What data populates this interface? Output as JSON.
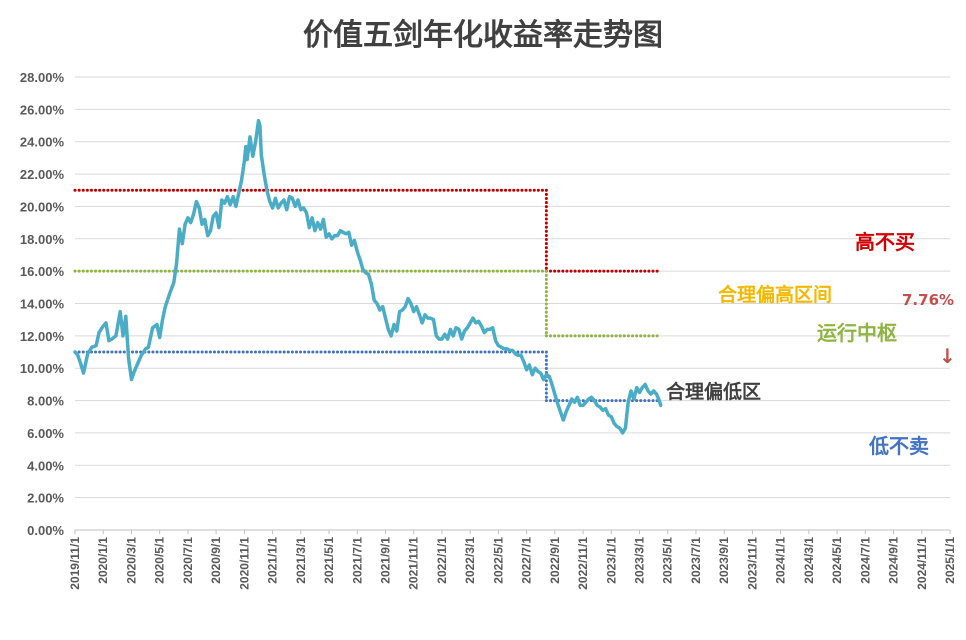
{
  "chart_data": {
    "type": "line",
    "title": "价值五剑年化收益率走势图",
    "xlabel": "",
    "ylabel": "",
    "ylim": [
      0,
      28
    ],
    "y_ticks": [
      "0.00%",
      "2.00%",
      "4.00%",
      "6.00%",
      "8.00%",
      "10.00%",
      "12.00%",
      "14.00%",
      "16.00%",
      "18.00%",
      "20.00%",
      "22.00%",
      "24.00%",
      "26.00%",
      "28.00%"
    ],
    "x_ticks": [
      "2019/11/1",
      "2020/1/1",
      "2020/3/1",
      "2020/5/1",
      "2020/7/1",
      "2020/9/1",
      "2020/11/1",
      "2021/1/1",
      "2021/3/1",
      "2021/5/1",
      "2021/7/1",
      "2021/9/1",
      "2021/11/1",
      "2022/1/1",
      "2022/3/1",
      "2022/5/1",
      "2022/7/1",
      "2022/9/1",
      "2022/11/1",
      "2023/1/1",
      "2023/3/1",
      "2023/5/1",
      "2023/7/1",
      "2023/9/1",
      "2023/11/1",
      "2024/1/1",
      "2024/3/1",
      "2024/5/1",
      "2024/7/1",
      "2024/9/1",
      "2024/11/1",
      "2025/1/1"
    ],
    "grid": true,
    "series": [
      {
        "color": "#4BACC6",
        "points": [
          [
            0.0,
            11.0
          ],
          [
            0.1,
            10.8
          ],
          [
            0.2,
            10.3
          ],
          [
            0.3,
            9.7
          ],
          [
            0.45,
            10.9
          ],
          [
            0.6,
            11.3
          ],
          [
            0.75,
            11.4
          ],
          [
            0.85,
            12.2
          ],
          [
            1.0,
            12.6
          ],
          [
            1.1,
            12.8
          ],
          [
            1.2,
            11.7
          ],
          [
            1.3,
            11.8
          ],
          [
            1.45,
            12.0
          ],
          [
            1.6,
            13.5
          ],
          [
            1.7,
            12.0
          ],
          [
            1.8,
            13.2
          ],
          [
            1.9,
            10.6
          ],
          [
            2.0,
            9.3
          ],
          [
            2.1,
            9.8
          ],
          [
            2.2,
            10.2
          ],
          [
            2.35,
            10.8
          ],
          [
            2.5,
            11.2
          ],
          [
            2.6,
            11.3
          ],
          [
            2.75,
            12.5
          ],
          [
            2.9,
            12.7
          ],
          [
            3.0,
            11.9
          ],
          [
            3.1,
            13.0
          ],
          [
            3.2,
            13.8
          ],
          [
            3.35,
            14.6
          ],
          [
            3.5,
            15.3
          ],
          [
            3.6,
            16.5
          ],
          [
            3.7,
            18.6
          ],
          [
            3.8,
            17.7
          ],
          [
            3.9,
            18.9
          ],
          [
            4.0,
            19.3
          ],
          [
            4.1,
            19.0
          ],
          [
            4.2,
            19.5
          ],
          [
            4.3,
            20.3
          ],
          [
            4.4,
            19.9
          ],
          [
            4.5,
            18.9
          ],
          [
            4.6,
            19.2
          ],
          [
            4.7,
            18.2
          ],
          [
            4.8,
            18.5
          ],
          [
            4.9,
            19.4
          ],
          [
            5.0,
            19.6
          ],
          [
            5.1,
            18.7
          ],
          [
            5.2,
            20.4
          ],
          [
            5.3,
            20.2
          ],
          [
            5.4,
            20.6
          ],
          [
            5.5,
            20.1
          ],
          [
            5.6,
            20.6
          ],
          [
            5.7,
            20.0
          ],
          [
            5.8,
            20.8
          ],
          [
            5.9,
            21.6
          ],
          [
            6.0,
            22.8
          ],
          [
            6.05,
            23.7
          ],
          [
            6.1,
            22.9
          ],
          [
            6.2,
            24.3
          ],
          [
            6.3,
            23.1
          ],
          [
            6.4,
            24.0
          ],
          [
            6.5,
            25.3
          ],
          [
            6.55,
            25.0
          ],
          [
            6.6,
            23.2
          ],
          [
            6.7,
            22.0
          ],
          [
            6.8,
            21.0
          ],
          [
            6.9,
            20.3
          ],
          [
            7.0,
            19.9
          ],
          [
            7.1,
            20.5
          ],
          [
            7.2,
            19.9
          ],
          [
            7.3,
            20.2
          ],
          [
            7.4,
            20.4
          ],
          [
            7.5,
            19.8
          ],
          [
            7.6,
            20.6
          ],
          [
            7.7,
            20.5
          ],
          [
            7.8,
            20.0
          ],
          [
            7.9,
            20.4
          ],
          [
            8.0,
            19.8
          ],
          [
            8.1,
            19.9
          ],
          [
            8.2,
            19.6
          ],
          [
            8.3,
            18.7
          ],
          [
            8.4,
            19.3
          ],
          [
            8.5,
            18.5
          ],
          [
            8.6,
            19.0
          ],
          [
            8.7,
            18.6
          ],
          [
            8.8,
            19.2
          ],
          [
            8.9,
            18.1
          ],
          [
            9.0,
            18.3
          ],
          [
            9.1,
            18.0
          ],
          [
            9.2,
            18.2
          ],
          [
            9.3,
            18.2
          ],
          [
            9.4,
            18.5
          ],
          [
            9.5,
            18.4
          ],
          [
            9.6,
            18.3
          ],
          [
            9.7,
            18.4
          ],
          [
            9.8,
            17.6
          ],
          [
            9.9,
            17.9
          ],
          [
            10.0,
            17.2
          ],
          [
            10.1,
            16.7
          ],
          [
            10.2,
            16.1
          ],
          [
            10.3,
            15.9
          ],
          [
            10.4,
            15.8
          ],
          [
            10.5,
            15.2
          ],
          [
            10.6,
            14.2
          ],
          [
            10.7,
            14.0
          ],
          [
            10.8,
            13.6
          ],
          [
            10.9,
            13.8
          ],
          [
            11.0,
            13.1
          ],
          [
            11.1,
            12.4
          ],
          [
            11.2,
            12.0
          ],
          [
            11.3,
            12.7
          ],
          [
            11.4,
            12.3
          ],
          [
            11.5,
            13.5
          ],
          [
            11.6,
            13.6
          ],
          [
            11.7,
            13.8
          ],
          [
            11.8,
            14.3
          ],
          [
            11.9,
            14.0
          ],
          [
            12.0,
            13.5
          ],
          [
            12.1,
            13.8
          ],
          [
            12.2,
            13.3
          ],
          [
            12.3,
            12.8
          ],
          [
            12.4,
            13.3
          ],
          [
            12.5,
            13.1
          ],
          [
            12.6,
            13.1
          ],
          [
            12.7,
            13.0
          ],
          [
            12.8,
            12.0
          ],
          [
            12.9,
            11.8
          ],
          [
            13.0,
            11.8
          ],
          [
            13.1,
            12.1
          ],
          [
            13.2,
            11.8
          ],
          [
            13.3,
            12.4
          ],
          [
            13.4,
            12.0
          ],
          [
            13.5,
            12.5
          ],
          [
            13.6,
            12.4
          ],
          [
            13.7,
            11.8
          ],
          [
            13.8,
            12.3
          ],
          [
            13.9,
            12.5
          ],
          [
            14.0,
            12.8
          ],
          [
            14.1,
            13.1
          ],
          [
            14.2,
            12.8
          ],
          [
            14.3,
            12.9
          ],
          [
            14.4,
            12.6
          ],
          [
            14.5,
            12.2
          ],
          [
            14.6,
            12.4
          ],
          [
            14.7,
            12.4
          ],
          [
            14.8,
            12.5
          ],
          [
            14.9,
            11.7
          ],
          [
            15.0,
            11.4
          ],
          [
            15.1,
            11.3
          ],
          [
            15.2,
            11.2
          ],
          [
            15.3,
            11.2
          ],
          [
            15.4,
            11.1
          ],
          [
            15.5,
            11.1
          ],
          [
            15.6,
            10.9
          ],
          [
            15.7,
            10.8
          ],
          [
            15.8,
            10.8
          ],
          [
            15.9,
            10.4
          ],
          [
            16.0,
            9.9
          ],
          [
            16.1,
            10.2
          ],
          [
            16.2,
            9.6
          ],
          [
            16.3,
            10.0
          ],
          [
            16.4,
            9.8
          ],
          [
            16.5,
            9.7
          ],
          [
            16.6,
            9.3
          ],
          [
            16.7,
            9.6
          ],
          [
            16.8,
            9.5
          ],
          [
            16.9,
            9.0
          ],
          [
            17.0,
            8.4
          ],
          [
            17.1,
            7.8
          ],
          [
            17.2,
            7.3
          ],
          [
            17.3,
            6.8
          ],
          [
            17.4,
            7.3
          ],
          [
            17.5,
            7.7
          ],
          [
            17.6,
            8.1
          ],
          [
            17.7,
            7.9
          ],
          [
            17.8,
            8.2
          ],
          [
            17.9,
            7.7
          ],
          [
            18.0,
            7.7
          ],
          [
            18.1,
            7.9
          ],
          [
            18.2,
            8.1
          ],
          [
            18.3,
            8.2
          ],
          [
            18.4,
            8.0
          ],
          [
            18.5,
            7.7
          ],
          [
            18.6,
            7.6
          ],
          [
            18.7,
            7.4
          ],
          [
            18.8,
            7.5
          ],
          [
            18.9,
            7.1
          ],
          [
            19.0,
            7.0
          ],
          [
            19.1,
            6.6
          ],
          [
            19.2,
            6.4
          ],
          [
            19.3,
            6.3
          ],
          [
            19.4,
            6.0
          ],
          [
            19.5,
            6.3
          ],
          [
            19.6,
            7.9
          ],
          [
            19.7,
            8.6
          ],
          [
            19.8,
            8.1
          ],
          [
            19.9,
            8.8
          ],
          [
            20.0,
            8.5
          ],
          [
            20.1,
            8.8
          ],
          [
            20.2,
            9.0
          ],
          [
            20.3,
            8.6
          ],
          [
            20.4,
            8.4
          ],
          [
            20.5,
            8.6
          ],
          [
            20.6,
            8.4
          ],
          [
            20.7,
            8.0
          ],
          [
            20.75,
            7.7
          ]
        ]
      }
    ],
    "reference_lines": [
      {
        "color": "#C00000",
        "segments": [
          [
            0,
            16.7,
            21.0
          ],
          [
            16.7,
            20.75,
            16.0
          ]
        ]
      },
      {
        "color": "#8FB443",
        "segments": [
          [
            0,
            16.7,
            16.0
          ],
          [
            16.7,
            20.75,
            12.0
          ]
        ]
      },
      {
        "color": "#4472C4",
        "segments": [
          [
            0,
            16.7,
            11.0
          ],
          [
            16.7,
            20.75,
            8.0
          ]
        ]
      }
    ],
    "annotations": [
      {
        "text": "高不买",
        "color": "#D00000"
      },
      {
        "text": "合理偏高区间",
        "color": "#F5B800"
      },
      {
        "text": "7.76%",
        "color": "#C0504D"
      },
      {
        "text": "↓",
        "color": "#C0504D"
      },
      {
        "text": "运行中枢",
        "color": "#8FB443"
      },
      {
        "text": "合理偏低区",
        "color": "#404040"
      },
      {
        "text": "低不卖",
        "color": "#4472C4"
      }
    ]
  }
}
